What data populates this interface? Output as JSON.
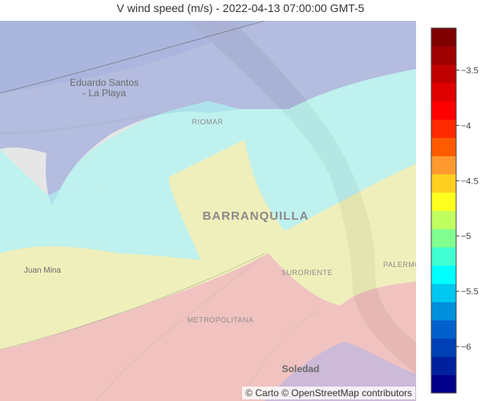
{
  "chart_data": {
    "type": "choropleth-map",
    "title": "V wind speed (m/s) - 2022-04-13 07:00:00 GMT-5",
    "colorbar": {
      "range": [
        -6.42,
        -3.12
      ],
      "ticks": [
        -3.5,
        -4,
        -4.5,
        -5,
        -5.5,
        -6
      ],
      "tick_labels": [
        "−3.5",
        "−4",
        "−4.5",
        "−5",
        "−5.5",
        "−6"
      ],
      "colors": [
        "#00008b",
        "#00209e",
        "#0040b5",
        "#0060cc",
        "#0090dd",
        "#00c8f0",
        "#00ffff",
        "#40ffd0",
        "#80ff90",
        "#c0ff60",
        "#ffff20",
        "#ffd020",
        "#ff9a30",
        "#ff5a00",
        "#ff2a00",
        "#ff0000",
        "#e00000",
        "#c00000",
        "#a00000",
        "#800000"
      ]
    },
    "zones": [
      {
        "value": -5.9,
        "color": "#9aa6dc"
      },
      {
        "value": -5.15,
        "color": "#aaf7f3"
      },
      {
        "value": -4.6,
        "color": "#f4f4a4"
      },
      {
        "value": -3.6,
        "color": "#f6b0ac"
      }
    ],
    "place_labels": [
      {
        "text": "Eduardo Santos"
      },
      {
        "text": "- La Playa"
      },
      {
        "text": "RIOMAR"
      },
      {
        "text": "BARRANQUILLA"
      },
      {
        "text": "Juan Mina"
      },
      {
        "text": "SURORIENTE"
      },
      {
        "text": "PALERMO"
      },
      {
        "text": "METROPOLITANA"
      },
      {
        "text": "Soledad"
      }
    ],
    "attribution": "© Carto © OpenStreetMap contributors"
  }
}
